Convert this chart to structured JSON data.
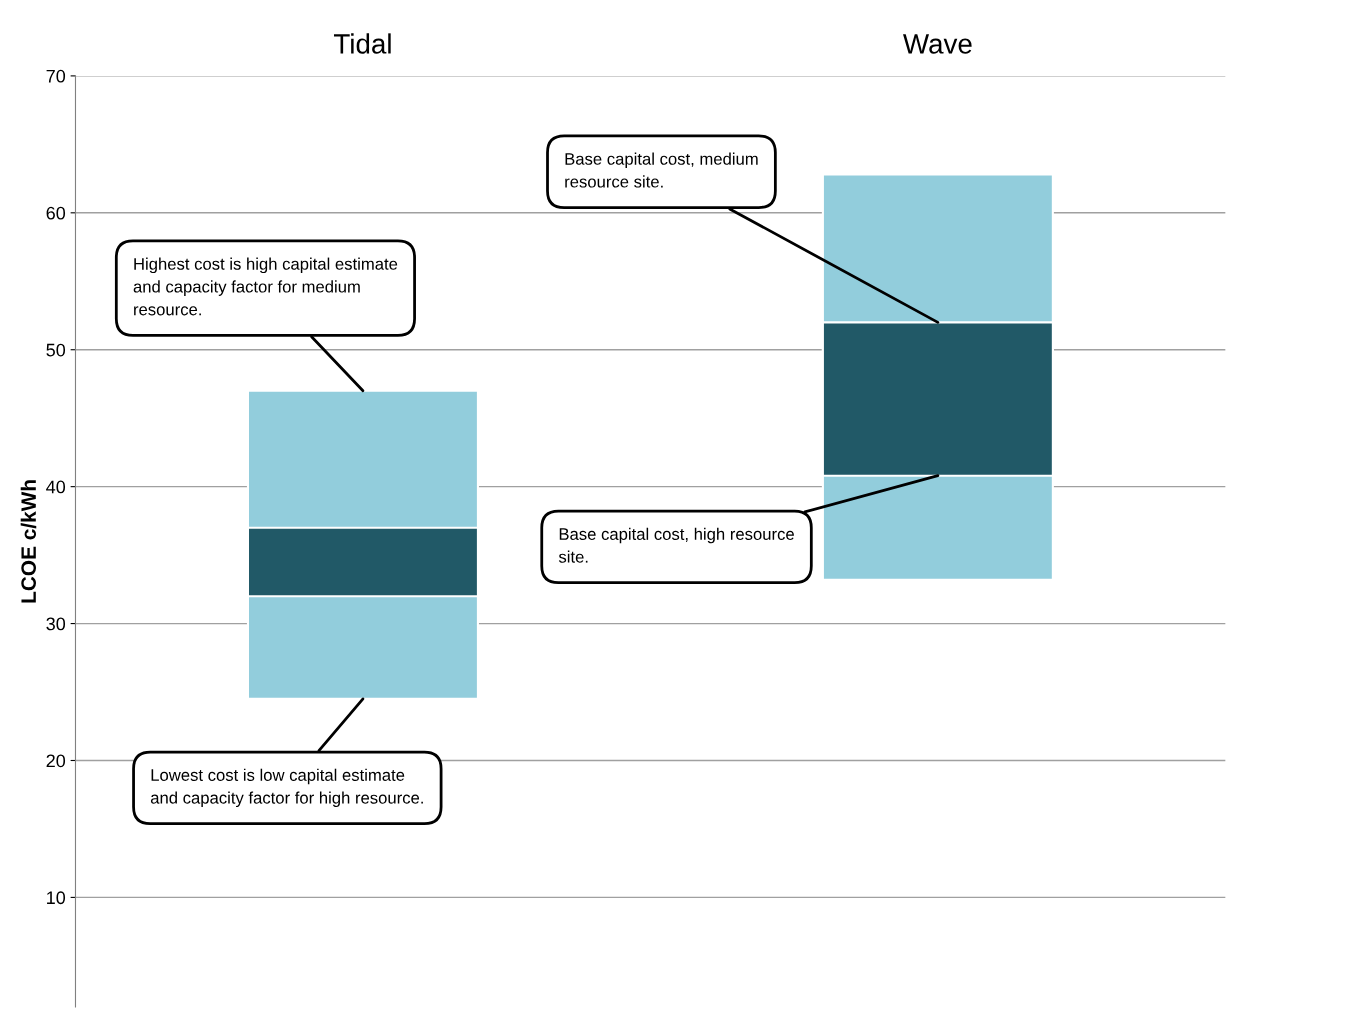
{
  "chart_data": {
    "type": "bar",
    "categories": [
      "Tidal",
      "Wave"
    ],
    "ylabel": "LCOE c/kWh",
    "series": [
      {
        "color": "#92cddc",
        "base": [
          24.5,
          33.2
        ],
        "values": [
          22.5,
          29.6
        ]
      },
      {
        "color": "#215967",
        "base": [
          32,
          40.8
        ],
        "values": [
          5,
          11.2
        ]
      }
    ],
    "ylim": [
      2,
      70
    ],
    "yticks": [
      10,
      20,
      30,
      40,
      50,
      60,
      70
    ],
    "grid": "y",
    "annotations": [
      {
        "text": "Highest cost is high capital estimate\nand capacity factor for medium\nresource.",
        "x": "Tidal",
        "y": 47
      },
      {
        "text": "Lowest cost is low capital estimate\nand capacity factor for high resource.",
        "x": "Tidal",
        "y": 24.5
      },
      {
        "text": "Base capital cost, medium\nresource site.",
        "x": "Wave",
        "y": 52
      },
      {
        "text": "Base capital cost, high resource\nsite.",
        "x": "Wave",
        "y": 40.8
      }
    ]
  }
}
